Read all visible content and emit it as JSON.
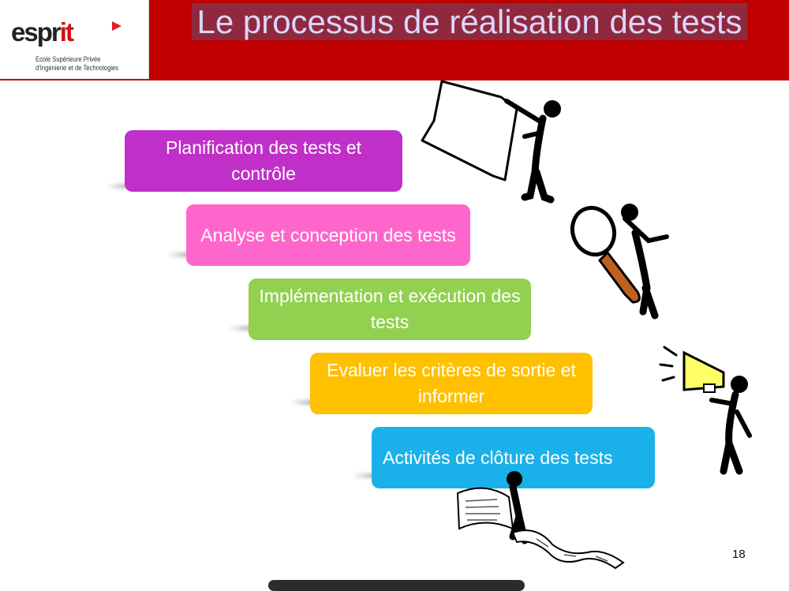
{
  "logo": {
    "word_main": "espr",
    "word_accent": "it",
    "line1": "Ecole Supérieure Privée",
    "line2": "d'Ingénierie et de Technologies"
  },
  "title": "Le processus de réalisation des tests",
  "steps": [
    {
      "label": "Planification des tests et contrôle",
      "color": "#c030c8"
    },
    {
      "label": "Analyse et conception des tests",
      "color": "#ff66cc"
    },
    {
      "label": "Implémentation et exécution des tests",
      "color": "#92d050"
    },
    {
      "label": "Evaluer les critères de sortie et informer",
      "color": "#ffc000"
    },
    {
      "label": "Activités de clôture des tests",
      "color": "#1ab1ea"
    }
  ],
  "page_number": "18",
  "colors": {
    "header": "#c00000",
    "title_text": "#dcd6ff",
    "title_highlight": "#8f2a3e"
  },
  "icons": [
    "figure-holding-sign-icon",
    "figure-with-magnifier-icon",
    "figure-with-megaphone-icon",
    "figure-reading-scroll-icon"
  ]
}
